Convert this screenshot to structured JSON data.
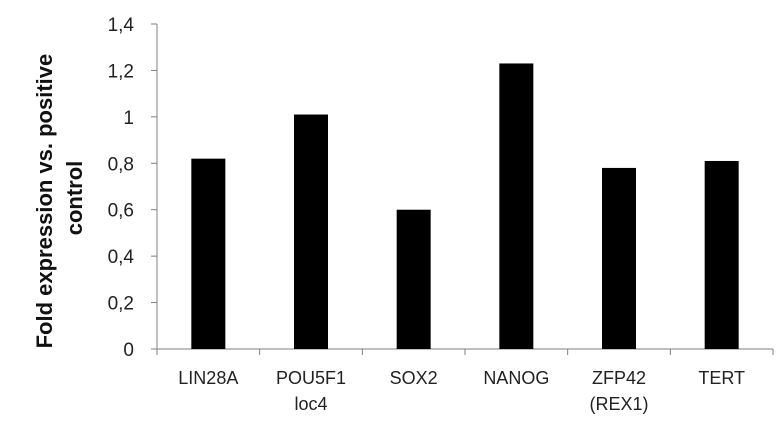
{
  "chart_data": {
    "type": "bar",
    "categories": [
      [
        "LIN28A"
      ],
      [
        "POU5F1",
        "loc4"
      ],
      [
        "SOX2"
      ],
      [
        "NANOG"
      ],
      [
        "ZFP42",
        "(REX1)"
      ],
      [
        "TERT"
      ]
    ],
    "values": [
      0.82,
      1.01,
      0.6,
      1.23,
      0.78,
      0.81
    ],
    "ylabel": [
      "Fold expression vs. positive",
      "control"
    ],
    "ylim": [
      0,
      1.4
    ],
    "yticks": [
      "0",
      "0,2",
      "0,4",
      "0,6",
      "0,8",
      "1",
      "1,2",
      "1,4"
    ],
    "grid": false,
    "legend": "none",
    "bar_color": "#000000",
    "axis_color": "#7f7f7f"
  }
}
